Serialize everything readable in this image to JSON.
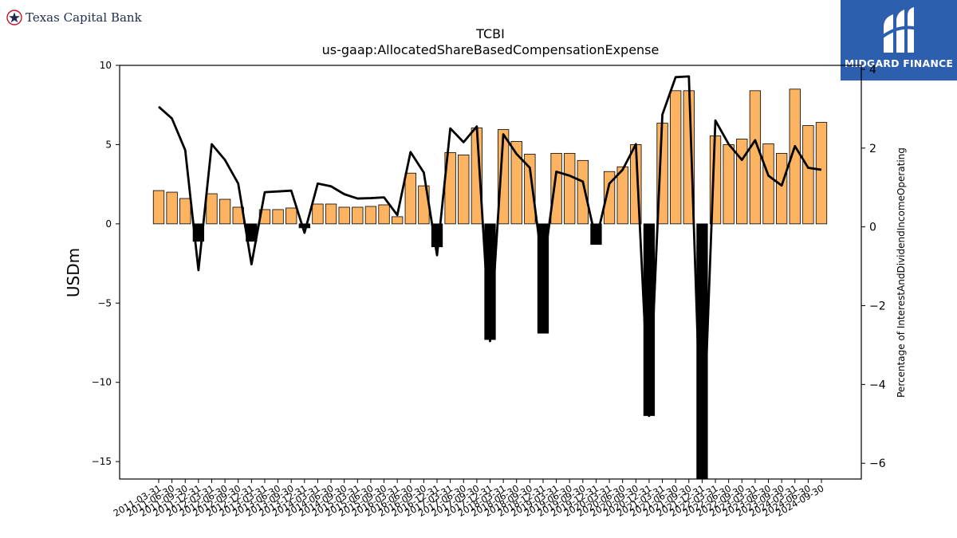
{
  "logos": {
    "left_brand": "Texas Capital Bank",
    "right_brand": "MIDGARD FINANCE"
  },
  "colors": {
    "bar_positive": "#FDB462",
    "bar_negative": "#000000",
    "line": "#000000",
    "midgard_blue": "#2d5fae",
    "tcb_navy": "#1d2c4c",
    "tcb_red": "#c8102e"
  },
  "chart_data": {
    "type": "bar",
    "title": "TCBI",
    "subtitle": "us-gaap:AllocatedShareBasedCompensationExpense",
    "ylabel": "USDm",
    "y2label": "Percentage of InterestAndDividendIncomeOperating",
    "ylim": [
      -16.1,
      10
    ],
    "y2lim": [
      -6.4,
      4.1
    ],
    "yticks": [
      10,
      5,
      0,
      -5,
      -10,
      -15
    ],
    "yticklabels": [
      "10",
      "5",
      "0",
      "−5",
      "−10",
      "−15"
    ],
    "y2ticks": [
      4,
      2,
      0,
      -2,
      -4,
      -6
    ],
    "y2ticklabels": [
      "4",
      "2",
      "0",
      "−2",
      "−4",
      "−6"
    ],
    "categories": [
      "2011-03-31",
      "2011-06-30",
      "2011-09-30",
      "2011-12-31",
      "2012-03-31",
      "2012-06-30",
      "2012-09-30",
      "2012-12-31",
      "2013-03-31",
      "2013-06-30",
      "2013-09-30",
      "2013-12-31",
      "2014-03-31",
      "2014-06-30",
      "2014-09-30",
      "2015-03-31",
      "2015-06-30",
      "2015-09-30",
      "2016-03-31",
      "2016-06-30",
      "2016-09-30",
      "2016-12-31",
      "2017-03-31",
      "2017-06-30",
      "2017-09-30",
      "2017-12-31",
      "2018-03-31",
      "2018-06-30",
      "2018-09-30",
      "2018-12-31",
      "2019-03-31",
      "2019-06-30",
      "2019-09-30",
      "2019-12-31",
      "2020-03-31",
      "2020-06-30",
      "2020-09-30",
      "2020-12-31",
      "2021-03-31",
      "2021-06-30",
      "2021-09-30",
      "2021-12-31",
      "2022-03-31",
      "2022-06-30",
      "2022-09-30",
      "2023-03-31",
      "2023-06-30",
      "2023-09-30",
      "2024-03-31",
      "2024-06-30",
      "2024-09-30"
    ],
    "series": [
      {
        "kind": "bar",
        "axis": "left",
        "values": [
          2.1,
          2.0,
          1.6,
          -1.1,
          1.9,
          1.55,
          1.05,
          -1.1,
          0.9,
          0.9,
          1.0,
          -0.25,
          1.25,
          1.25,
          1.05,
          1.05,
          1.1,
          1.2,
          0.45,
          3.2,
          2.4,
          -1.45,
          4.5,
          4.35,
          6.05,
          -7.3,
          5.95,
          5.2,
          4.4,
          -6.9,
          4.45,
          4.45,
          4.0,
          -1.3,
          3.3,
          3.6,
          5.0,
          -12.1,
          6.35,
          8.4,
          8.4,
          -16.1,
          5.55,
          5.0,
          5.35,
          8.4,
          5.05,
          4.45,
          8.5,
          6.2,
          6.4
        ]
      },
      {
        "kind": "line",
        "axis": "right",
        "values": [
          3.05,
          2.75,
          1.95,
          -1.1,
          2.1,
          1.7,
          1.1,
          -0.95,
          0.88,
          0.9,
          0.92,
          -0.15,
          1.1,
          1.03,
          0.83,
          0.72,
          0.73,
          0.75,
          0.3,
          1.9,
          1.38,
          -0.72,
          2.5,
          2.15,
          2.55,
          -2.9,
          2.35,
          1.85,
          1.5,
          -1.1,
          1.4,
          1.3,
          1.15,
          -0.35,
          1.1,
          1.45,
          2.1,
          -4.8,
          2.85,
          3.8,
          3.82,
          -6.3,
          2.7,
          2.1,
          1.7,
          2.2,
          1.3,
          1.05,
          2.05,
          1.5,
          1.45
        ]
      }
    ],
    "grid": false,
    "legend": "none"
  }
}
